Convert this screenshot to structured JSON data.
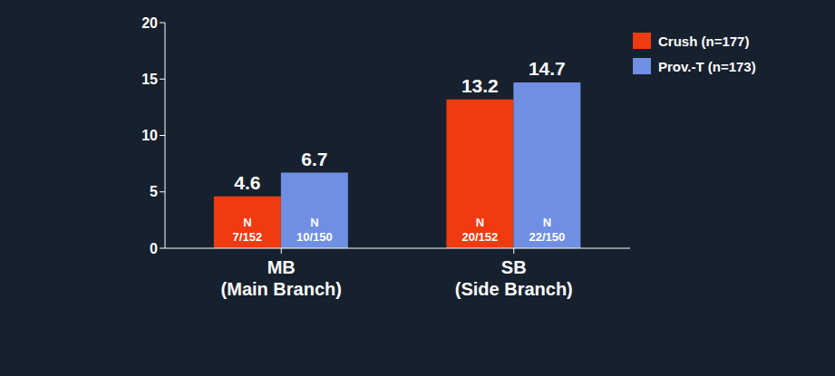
{
  "chart_data": {
    "type": "bar",
    "categories": [
      "MB\n(Main Branch)",
      "SB\n(Side Branch)"
    ],
    "series": [
      {
        "name": "Crush (n=177)",
        "color": "#f03a10",
        "values": [
          4.6,
          13.2
        ],
        "annotations": [
          "N\n7/152",
          "N\n20/152"
        ]
      },
      {
        "name": "Prov.-T (n=173)",
        "color": "#6f8fe3",
        "values": [
          6.7,
          14.7
        ],
        "annotations": [
          "N\n10/150",
          "N\n22/150"
        ]
      }
    ],
    "ylim": [
      0,
      20
    ],
    "yticks": [
      0,
      5,
      10,
      15,
      20
    ],
    "grid": false,
    "legend": "top-right",
    "data_labels": true
  }
}
